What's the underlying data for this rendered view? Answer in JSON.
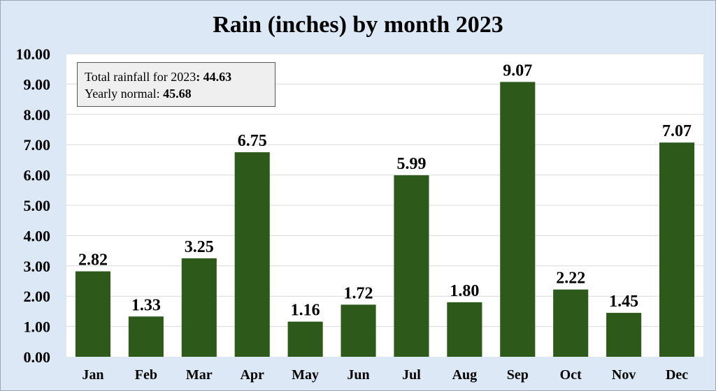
{
  "chart_data": {
    "type": "bar",
    "title": "Rain (inches) by month 2023",
    "categories": [
      "Jan",
      "Feb",
      "Mar",
      "Apr",
      "May",
      "Jun",
      "Jul",
      "Aug",
      "Sep",
      "Oct",
      "Nov",
      "Dec"
    ],
    "values": [
      2.82,
      1.33,
      3.25,
      6.75,
      1.16,
      1.72,
      5.99,
      1.8,
      9.07,
      2.22,
      1.45,
      7.07
    ],
    "value_labels": [
      "2.82",
      "1.33",
      "3.25",
      "6.75",
      "1.16",
      "1.72",
      "5.99",
      "1.80",
      "9.07",
      "2.22",
      "1.45",
      "7.07"
    ],
    "ylim": [
      0,
      10
    ],
    "yticks": [
      "0.00",
      "1.00",
      "2.00",
      "3.00",
      "4.00",
      "5.00",
      "6.00",
      "7.00",
      "8.00",
      "9.00",
      "10.00"
    ],
    "grid": true,
    "colors": {
      "bar": "#2d5a1b",
      "background": "#dce8f6",
      "plot": "#ffffff",
      "grid": "#d9d9d9"
    }
  },
  "annotation": {
    "total_label": "Total rainfall for 2023",
    "total_value": ": 44.63",
    "normal_label": "Yearly normal: ",
    "normal_value": "45.68"
  }
}
